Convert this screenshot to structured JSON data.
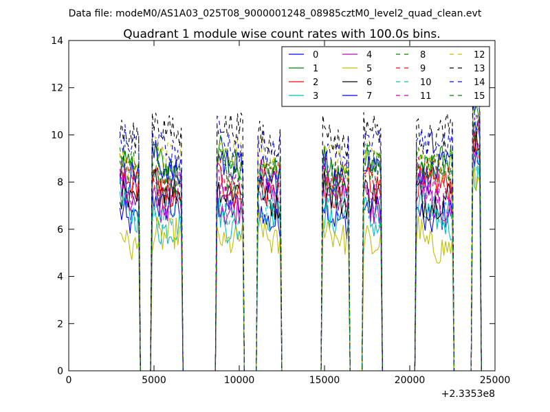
{
  "chart_data": {
    "type": "line",
    "suptitle": "Data file: modeM0/AS1A03_025T08_9000001248_08985cztM0_level2_quad_clean.evt",
    "title": "Quadrant 1 module wise count rates with 100.0s bins.",
    "xlabel": "",
    "ylabel": "",
    "x_offset_label": "+2.3353e8",
    "xlim": [
      0,
      25000
    ],
    "ylim": [
      0,
      14
    ],
    "xticks": [
      0,
      5000,
      10000,
      15000,
      20000,
      25000
    ],
    "yticks": [
      0,
      2,
      4,
      6,
      8,
      10,
      12,
      14
    ],
    "grid": false,
    "legend_position": "top-right",
    "legend_columns": 4,
    "active_segments": [
      [
        3000,
        4100
      ],
      [
        4900,
        6600
      ],
      [
        8700,
        10200
      ],
      [
        11100,
        12400
      ],
      [
        14900,
        16400
      ],
      [
        17300,
        18300
      ],
      [
        20400,
        22500
      ],
      [
        23700,
        24100
      ]
    ],
    "series": [
      {
        "name": "0",
        "color": "#0000ff",
        "dash": "solid",
        "level": 6.6
      },
      {
        "name": "1",
        "color": "#008000",
        "dash": "solid",
        "level": 8.6
      },
      {
        "name": "2",
        "color": "#ff0000",
        "dash": "solid",
        "level": 7.6
      },
      {
        "name": "3",
        "color": "#00bfbf",
        "dash": "solid",
        "level": 6.3
      },
      {
        "name": "4",
        "color": "#bf00bf",
        "dash": "solid",
        "level": 7.1
      },
      {
        "name": "5",
        "color": "#bfbf00",
        "dash": "solid",
        "level": 5.5
      },
      {
        "name": "6",
        "color": "#000000",
        "dash": "solid",
        "level": 7.4
      },
      {
        "name": "7",
        "color": "#0000ff",
        "dash": "solid",
        "level": 8.4
      },
      {
        "name": "8",
        "color": "#008000",
        "dash": "dashed",
        "level": 8.5
      },
      {
        "name": "9",
        "color": "#ff0000",
        "dash": "dashed",
        "level": 8.0
      },
      {
        "name": "10",
        "color": "#00bfbf",
        "dash": "dashed",
        "level": 6.9
      },
      {
        "name": "11",
        "color": "#bf00bf",
        "dash": "dashed",
        "level": 7.8
      },
      {
        "name": "12",
        "color": "#bfbf00",
        "dash": "dashed",
        "level": 9.0
      },
      {
        "name": "13",
        "color": "#000000",
        "dash": "dashed",
        "level": 10.0
      },
      {
        "name": "14",
        "color": "#0000ff",
        "dash": "dashed",
        "level": 9.4
      },
      {
        "name": "15",
        "color": "#008000",
        "dash": "dashed",
        "level": 8.3
      }
    ]
  }
}
